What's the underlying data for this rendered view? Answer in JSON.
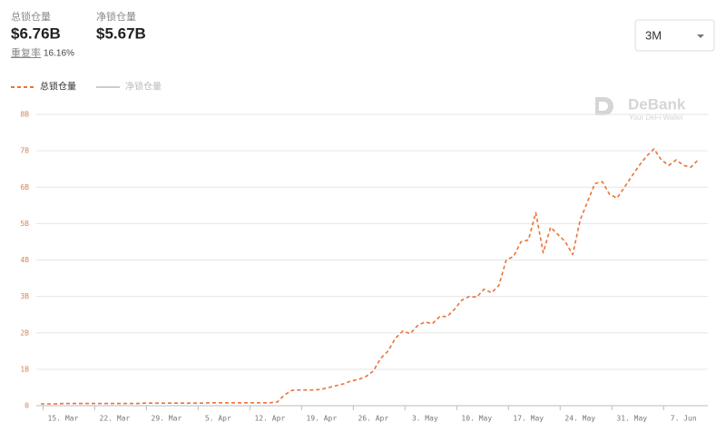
{
  "header": {
    "stats": [
      {
        "label": "总锁仓量",
        "value": "$6.76B"
      },
      {
        "label": "净锁仓量",
        "value": "$5.67B"
      }
    ],
    "ratio_label": "重复率",
    "ratio_value": "16.16%"
  },
  "dropdown": "3M",
  "watermark": {
    "title": "DeBank",
    "subtitle": "Your DeFi Wallet"
  },
  "chart_data": {
    "type": "line",
    "categories": [
      null,
      null,
      null,
      "15. Mar",
      null,
      null,
      null,
      null,
      null,
      null,
      "22. Mar",
      null,
      null,
      null,
      null,
      null,
      null,
      "29. Mar",
      null,
      null,
      null,
      null,
      null,
      null,
      "5. Apr",
      null,
      null,
      null,
      null,
      null,
      null,
      "12. Apr",
      null,
      null,
      null,
      null,
      null,
      null,
      "19. Apr",
      null,
      null,
      null,
      null,
      null,
      null,
      "26. Apr",
      null,
      null,
      null,
      null,
      null,
      null,
      "3. May",
      null,
      null,
      null,
      null,
      null,
      null,
      "10. May",
      null,
      null,
      null,
      null,
      null,
      null,
      "17. May",
      null,
      null,
      null,
      null,
      null,
      null,
      "24. May",
      null,
      null,
      null,
      null,
      null,
      null,
      "31. May",
      null,
      null,
      null,
      null,
      null,
      null,
      "7. Jun",
      null,
      null
    ],
    "series": [
      {
        "name": "总锁仓量",
        "color": "#e8743b",
        "dashed": true,
        "values": [
          0.05,
          0.05,
          0.05,
          0.06,
          0.06,
          0.06,
          0.06,
          0.06,
          0.06,
          0.06,
          0.06,
          0.06,
          0.06,
          0.06,
          0.07,
          0.07,
          0.07,
          0.07,
          0.07,
          0.07,
          0.07,
          0.07,
          0.07,
          0.08,
          0.08,
          0.08,
          0.08,
          0.08,
          0.08,
          0.08,
          0.08,
          0.08,
          0.1,
          0.3,
          0.42,
          0.43,
          0.43,
          0.43,
          0.45,
          0.5,
          0.55,
          0.6,
          0.68,
          0.72,
          0.8,
          0.95,
          1.3,
          1.5,
          1.85,
          2.05,
          1.98,
          2.2,
          2.3,
          2.25,
          2.45,
          2.45,
          2.65,
          2.9,
          3.0,
          2.98,
          3.2,
          3.1,
          3.3,
          4.0,
          4.1,
          4.5,
          4.55,
          5.3,
          4.2,
          4.9,
          4.7,
          4.5,
          4.15,
          5.1,
          5.6,
          6.1,
          6.15,
          5.8,
          5.7,
          6.0,
          6.3,
          6.6,
          6.85,
          7.05,
          6.75,
          6.6,
          6.75,
          6.6,
          6.55,
          6.76
        ]
      },
      {
        "name": "净锁仓量",
        "color": "#cccccc",
        "hidden": true
      }
    ],
    "ylim": [
      0,
      8
    ],
    "yticks": [
      0,
      {
        "value": 1,
        "label": "1B"
      },
      {
        "value": 2,
        "label": "2B"
      },
      {
        "value": 3,
        "label": "3B"
      },
      {
        "value": 4,
        "label": "4B"
      },
      {
        "value": 5,
        "label": "5B"
      },
      {
        "value": 6,
        "label": "6B"
      },
      {
        "value": 7,
        "label": "7B"
      },
      {
        "value": 8,
        "label": "8B"
      }
    ],
    "grid": true
  }
}
